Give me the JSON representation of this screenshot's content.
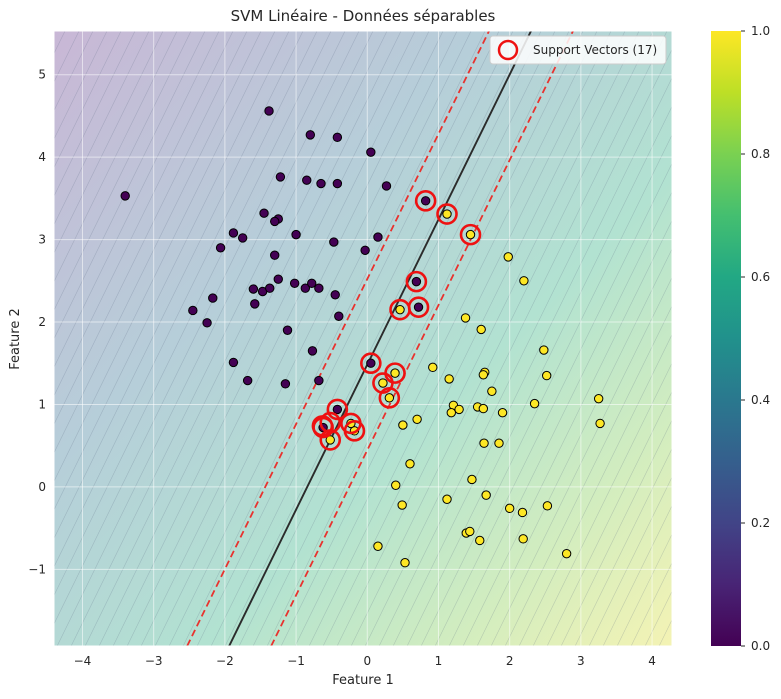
{
  "chart_data": {
    "type": "scatter",
    "title": "SVM Linéaire - Données séparables",
    "xlabel": "Feature 1",
    "ylabel": "Feature 2",
    "xlim": [
      -4.4,
      4.28
    ],
    "ylim": [
      -1.93,
      5.53
    ],
    "xticks": [
      -4,
      -3,
      -2,
      -1,
      0,
      1,
      2,
      3,
      4
    ],
    "yticks": [
      -1,
      0,
      1,
      2,
      3,
      4,
      5
    ],
    "grid": true,
    "legend_position": "top-right",
    "legend_label": "Support Vectors (17)",
    "decision_boundary": {
      "points": [
        [
          -1.94,
          -1.93
        ],
        [
          2.3,
          5.53
        ]
      ]
    },
    "margin_lines": [
      {
        "points": [
          [
            -2.53,
            -1.93
          ],
          [
            1.71,
            5.53
          ]
        ]
      },
      {
        "points": [
          [
            -1.35,
            -1.93
          ],
          [
            2.89,
            5.53
          ]
        ]
      }
    ],
    "colorbar": {
      "min": 0.0,
      "max": 1.0,
      "ticks": [
        "0.0",
        "0.2",
        "0.4",
        "0.6",
        "0.8",
        "1.0"
      ],
      "colormap": "viridis"
    },
    "series": [
      {
        "class": 0,
        "color": "#440154",
        "points": [
          [
            -3.4,
            3.53
          ],
          [
            -1.38,
            4.56
          ],
          [
            -0.8,
            4.27
          ],
          [
            -0.42,
            4.24
          ],
          [
            0.05,
            4.06
          ],
          [
            -1.22,
            3.76
          ],
          [
            -0.85,
            3.72
          ],
          [
            -0.65,
            3.68
          ],
          [
            -0.42,
            3.68
          ],
          [
            0.27,
            3.65
          ],
          [
            -1.88,
            3.08
          ],
          [
            -1.75,
            3.02
          ],
          [
            -2.06,
            2.9
          ],
          [
            -1.25,
            3.25
          ],
          [
            -1.3,
            3.22
          ],
          [
            -1.45,
            3.32
          ],
          [
            -1.0,
            3.06
          ],
          [
            -0.47,
            2.97
          ],
          [
            0.15,
            3.03
          ],
          [
            -0.03,
            2.87
          ],
          [
            -1.3,
            2.81
          ],
          [
            -2.45,
            2.14
          ],
          [
            -2.25,
            1.99
          ],
          [
            -2.17,
            2.29
          ],
          [
            -1.58,
            2.22
          ],
          [
            -1.47,
            2.37
          ],
          [
            -1.6,
            2.4
          ],
          [
            -1.37,
            2.41
          ],
          [
            -1.25,
            2.52
          ],
          [
            -1.02,
            2.47
          ],
          [
            -0.87,
            2.41
          ],
          [
            -0.78,
            2.47
          ],
          [
            -0.68,
            2.41
          ],
          [
            -0.45,
            2.33
          ],
          [
            -0.4,
            2.07
          ],
          [
            -1.12,
            1.9
          ],
          [
            -0.77,
            1.65
          ],
          [
            -1.88,
            1.51
          ],
          [
            -1.68,
            1.29
          ],
          [
            -1.15,
            1.25
          ],
          [
            -0.68,
            1.29
          ],
          [
            -0.62,
            0.72
          ],
          [
            0.82,
            3.47
          ],
          [
            0.69,
            2.49
          ],
          [
            0.72,
            2.18
          ],
          [
            0.05,
            1.5
          ],
          [
            -0.42,
            0.94
          ]
        ]
      },
      {
        "class": 1,
        "color": "#fde725",
        "points": [
          [
            1.12,
            3.31
          ],
          [
            1.45,
            3.06
          ],
          [
            1.98,
            2.79
          ],
          [
            2.2,
            2.5
          ],
          [
            1.38,
            2.05
          ],
          [
            1.6,
            1.91
          ],
          [
            0.46,
            2.15
          ],
          [
            2.48,
            1.66
          ],
          [
            0.92,
            1.45
          ],
          [
            1.15,
            1.31
          ],
          [
            1.65,
            1.39
          ],
          [
            1.63,
            1.36
          ],
          [
            1.75,
            1.16
          ],
          [
            2.52,
            1.35
          ],
          [
            0.39,
            1.38
          ],
          [
            0.22,
            1.26
          ],
          [
            0.31,
            1.08
          ],
          [
            1.21,
            0.99
          ],
          [
            1.18,
            0.9
          ],
          [
            1.29,
            0.94
          ],
          [
            1.55,
            0.97
          ],
          [
            1.63,
            0.95
          ],
          [
            1.9,
            0.9
          ],
          [
            2.35,
            1.01
          ],
          [
            3.25,
            1.07
          ],
          [
            3.27,
            0.77
          ],
          [
            0.7,
            0.82
          ],
          [
            0.5,
            0.75
          ],
          [
            1.64,
            0.53
          ],
          [
            1.85,
            0.53
          ],
          [
            0.6,
            0.28
          ],
          [
            1.47,
            0.09
          ],
          [
            0.4,
            0.02
          ],
          [
            1.67,
            -0.1
          ],
          [
            1.12,
            -0.15
          ],
          [
            0.49,
            -0.22
          ],
          [
            2.0,
            -0.26
          ],
          [
            2.18,
            -0.31
          ],
          [
            2.53,
            -0.23
          ],
          [
            1.39,
            -0.56
          ],
          [
            1.44,
            -0.54
          ],
          [
            1.58,
            -0.65
          ],
          [
            2.19,
            -0.63
          ],
          [
            0.15,
            -0.72
          ],
          [
            2.8,
            -0.81
          ],
          [
            0.53,
            -0.92
          ],
          [
            -0.52,
            0.57
          ],
          [
            -0.18,
            0.68
          ],
          [
            -0.23,
            0.77
          ]
        ]
      }
    ],
    "support_vectors": [
      [
        0.82,
        3.47
      ],
      [
        1.12,
        3.31
      ],
      [
        1.45,
        3.06
      ],
      [
        0.69,
        2.49
      ],
      [
        0.72,
        2.18
      ],
      [
        0.46,
        2.15
      ],
      [
        0.05,
        1.5
      ],
      [
        0.39,
        1.38
      ],
      [
        0.22,
        1.26
      ],
      [
        0.31,
        1.08
      ],
      [
        -0.42,
        0.94
      ],
      [
        -0.62,
        0.72
      ],
      [
        -0.52,
        0.78
      ],
      [
        -0.23,
        0.77
      ],
      [
        -0.18,
        0.68
      ],
      [
        -0.52,
        0.57
      ],
      [
        -0.63,
        0.74
      ]
    ]
  }
}
